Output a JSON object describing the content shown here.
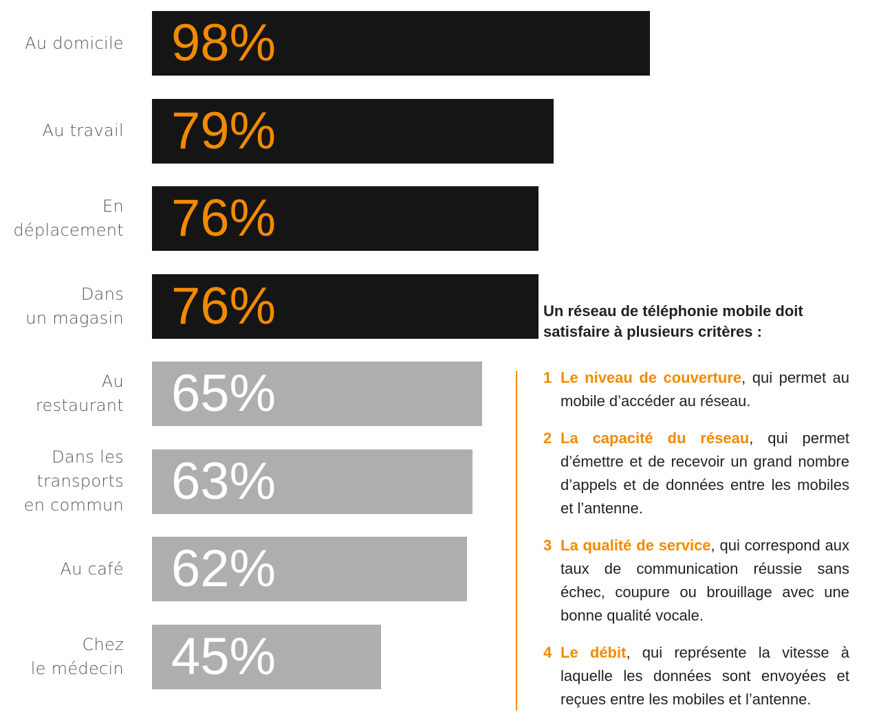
{
  "chart_data": {
    "type": "bar",
    "orientation": "horizontal",
    "categories": [
      "Au domicile",
      "Au travail",
      "En déplacement",
      "Dans un magasin",
      "Au restaurant",
      "Dans les transports en commun",
      "Au café",
      "Chez le médecin"
    ],
    "category_lines": [
      [
        "Au domicile"
      ],
      [
        "Au travail"
      ],
      [
        "En",
        "déplacement"
      ],
      [
        "Dans",
        "un magasin"
      ],
      [
        "Au",
        "restaurant"
      ],
      [
        "Dans les",
        "transports",
        "en commun"
      ],
      [
        "Au café"
      ],
      [
        "Chez",
        "le médecin"
      ]
    ],
    "values": [
      98,
      79,
      76,
      76,
      65,
      63,
      62,
      45
    ],
    "value_labels": [
      "98%",
      "79%",
      "76%",
      "76%",
      "65%",
      "63%",
      "62%",
      "45%"
    ],
    "highlight": [
      true,
      true,
      true,
      true,
      false,
      false,
      false,
      false
    ],
    "xlim": [
      0,
      100
    ],
    "grid": false,
    "title": "",
    "xlabel": "",
    "ylabel": ""
  },
  "colors": {
    "bar_dark": "#151515",
    "bar_grey": "#aeaeae",
    "value_on_dark": "#f28a00",
    "value_on_grey": "#ffffff",
    "accent": "#f28a00"
  },
  "side": {
    "title": "Un réseau de téléphonie mobile doit satisfaire  à plusieurs critères :",
    "criteria": [
      {
        "num": "1",
        "term": "Le niveau de couverture",
        "text": ", qui permet au mobile d’accéder au réseau."
      },
      {
        "num": "2",
        "term": "La capacité du réseau",
        "text": ", qui permet d’émettre et de recevoir un grand nombre d’appels et de données entre les mobiles et l’antenne."
      },
      {
        "num": "3",
        "term": "La qualité de service",
        "text": ", qui correspond aux taux de communication réussie sans échec, coupure ou brouillage avec une bonne qualité vocale."
      },
      {
        "num": "4",
        "term": "Le débit",
        "text": ", qui représente la vitesse à laquelle les données sont envoyées et reçues entre les mobiles et l’antenne."
      }
    ]
  }
}
